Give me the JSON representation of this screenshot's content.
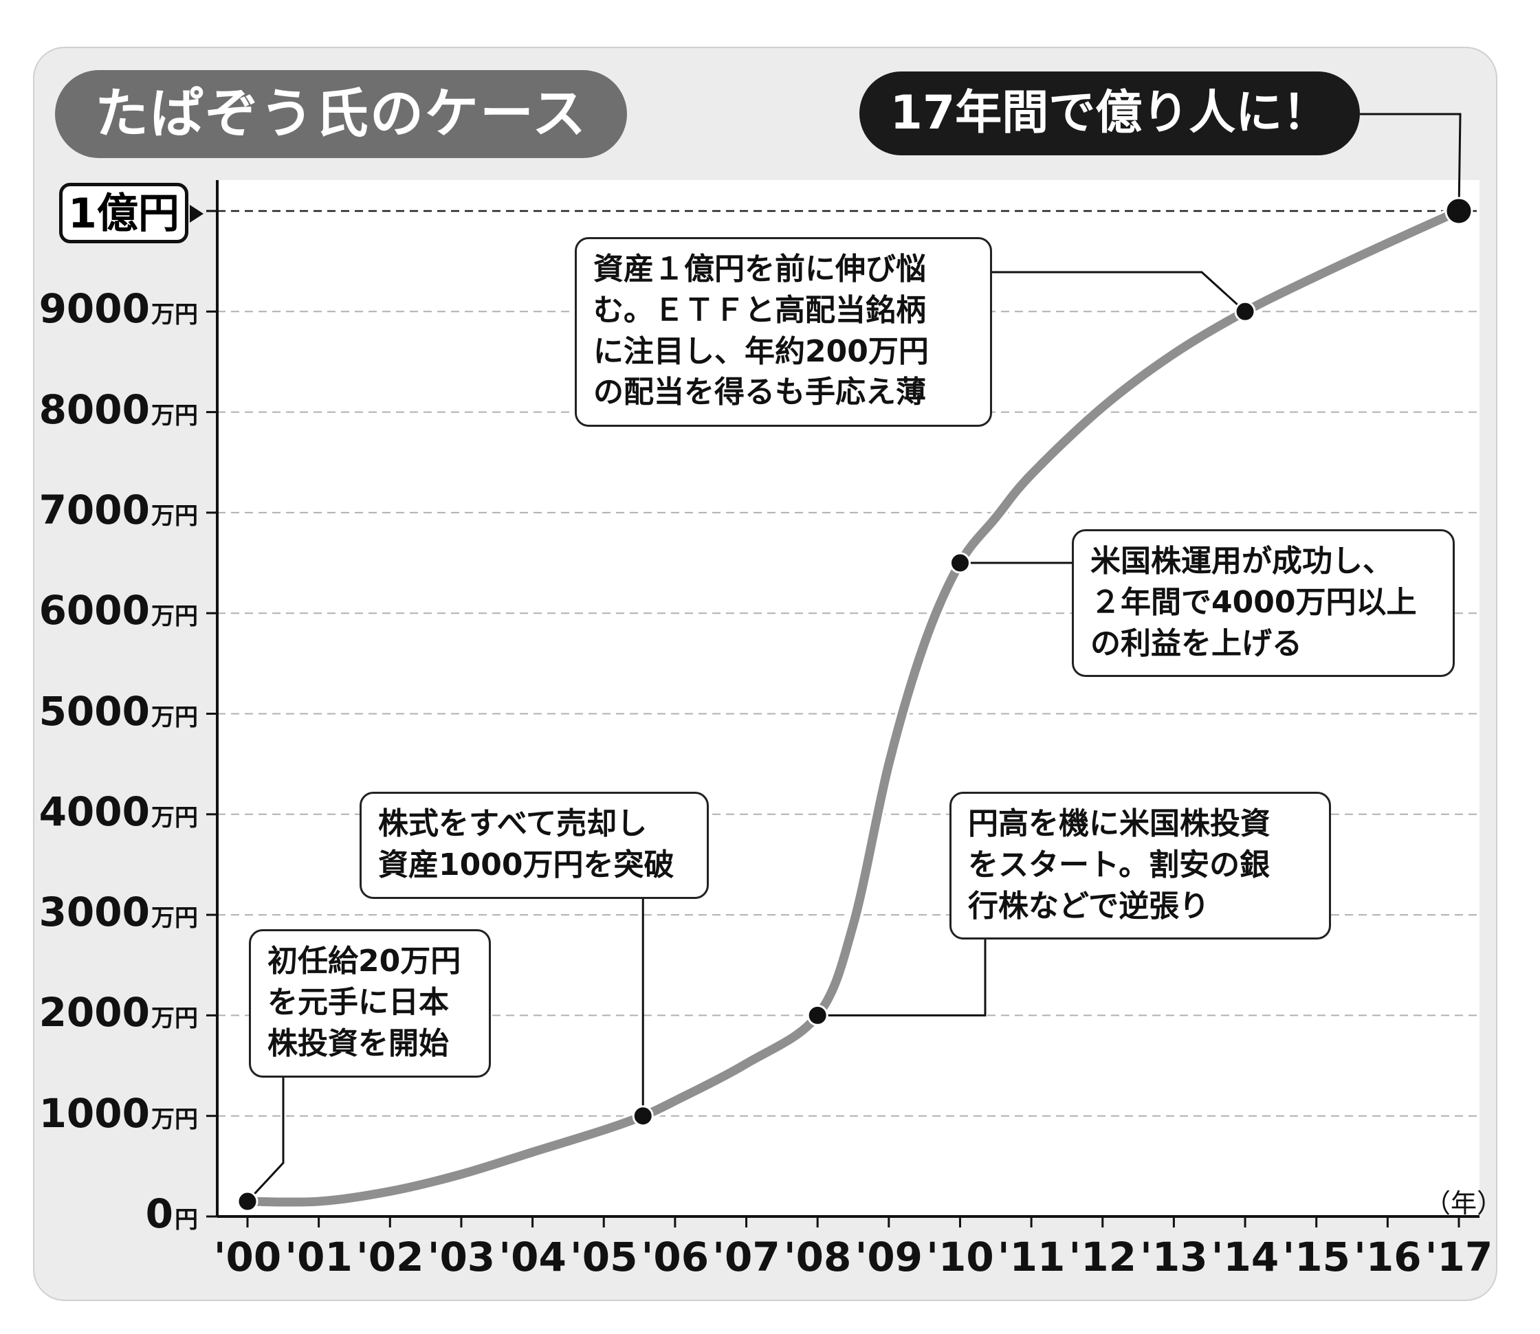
{
  "title": "たぱぞう氏のケース",
  "headline": "17年間で億り人に！",
  "top_label": "1億円",
  "x_unit": "（年）",
  "unit_suffix": "万円",
  "zero_label": "0",
  "zero_unit": "円",
  "y_tick_numbers": [
    "1000",
    "2000",
    "3000",
    "4000",
    "5000",
    "6000",
    "7000",
    "8000",
    "9000"
  ],
  "chart_data": {
    "type": "line",
    "title": "たぱぞう氏のケース",
    "xlabel": "（年）",
    "ylabel": "",
    "categories": [
      "'00",
      "'01",
      "'02",
      "'03",
      "'04",
      "'05",
      "'06",
      "'07",
      "'08",
      "'09",
      "'10",
      "'11",
      "'12",
      "'13",
      "'14",
      "'15",
      "'16",
      "'17"
    ],
    "x_range": [
      2000,
      2017
    ],
    "ylim": [
      0,
      10000
    ],
    "y_unit": "万円",
    "grid": "horizontal dashed",
    "series": [
      {
        "x": [
          2000,
          2001,
          2002,
          2003,
          2004,
          2005,
          2005.55,
          2006,
          2007,
          2008,
          2008.5,
          2009,
          2009.5,
          2010,
          2010.5,
          2011,
          2012,
          2013,
          2014,
          2015,
          2016,
          2017
        ],
        "values": [
          150,
          150,
          250,
          420,
          640,
          860,
          1000,
          1150,
          1520,
          2000,
          2900,
          4500,
          5700,
          6500,
          6950,
          7380,
          8050,
          8580,
          9000,
          9350,
          9680,
          10000
        ]
      }
    ],
    "markers": [
      {
        "x": 2000,
        "value": 150
      },
      {
        "x": 2005.55,
        "value": 1000
      },
      {
        "x": 2008,
        "value": 2000
      },
      {
        "x": 2010,
        "value": 6500
      },
      {
        "x": 2014,
        "value": 9000
      },
      {
        "x": 2017,
        "value": 10000
      }
    ],
    "annotations": [
      {
        "text": "初任給20万円\nを元手に日本\n株投資を開始"
      },
      {
        "text": "株式をすべて売却し\n資産1000万円を突破"
      },
      {
        "text": "円高を機に米国株投資\nをスタート。割安の銀\n行株などで逆張り"
      },
      {
        "text": "米国株運用が成功し、\n２年間で4000万円以上\nの利益を上げる"
      },
      {
        "text": "資産１億円を前に伸び悩\nむ。ＥＴＦと高配当銘柄\nに注目し、年約200万円\nの配当を得るも手応え薄"
      }
    ]
  }
}
